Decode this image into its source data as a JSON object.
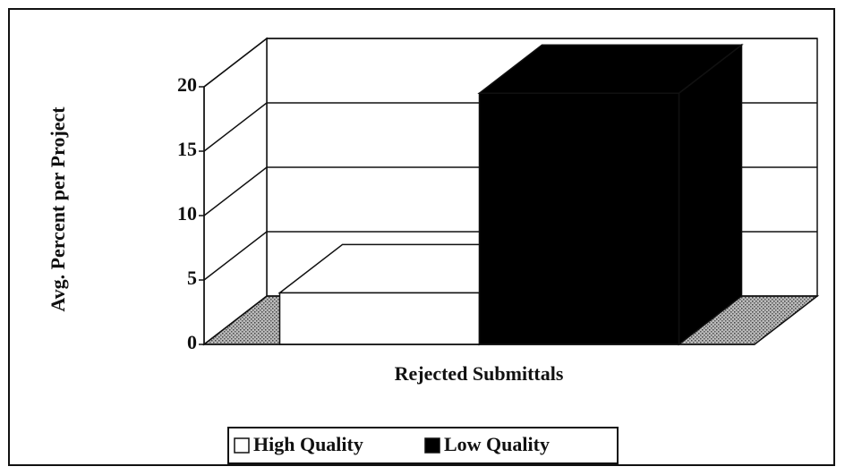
{
  "chart_data": {
    "type": "bar",
    "categories": [
      "Rejected Submittals"
    ],
    "series": [
      {
        "name": "High Quality",
        "color": "#ffffff",
        "values": [
          4
        ]
      },
      {
        "name": "Low Quality",
        "color": "#000000",
        "values": [
          19.5
        ]
      }
    ],
    "y_label": "Avg. Percent per Project",
    "ylim": [
      0,
      20
    ],
    "yticks": [
      0,
      5,
      10,
      15,
      20
    ],
    "grid": true,
    "legend": "bottom"
  }
}
